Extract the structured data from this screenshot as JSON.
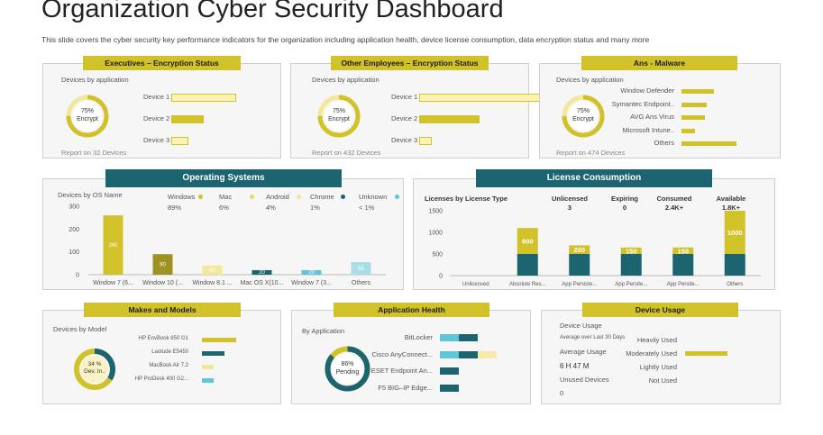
{
  "header": {
    "title": "Organization Cyber Security Dashboard",
    "subtitle": "This slide covers the cyber security key performance indicators for the organization including application health, device license consumption, data encryption status and many more"
  },
  "colors": {
    "yellow": "#d2c22a",
    "teal": "#1c6470",
    "cyan": "#5fc5d8",
    "light_yellow": "#fbf2b3"
  },
  "exec": {
    "title": "Executives – Encryption Status",
    "devices_label": "Devices by application",
    "ring_pct": "75%",
    "ring_label": "Encrypt",
    "ring_value": 0.75,
    "items": [
      {
        "label": "Device 1",
        "value": 0.95,
        "style": "light"
      },
      {
        "label": "Device 2",
        "value": 0.48,
        "style": "solid"
      },
      {
        "label": "Device 3",
        "value": 0.25,
        "style": "light"
      }
    ],
    "footer": "Report on 32 Devices"
  },
  "other": {
    "title": "Other Employees – Encryption Status",
    "devices_label": "Devices by application",
    "ring_pct": "75%",
    "ring_label": "Encrypt",
    "ring_value": 0.75,
    "items": [
      {
        "label": "Device 1",
        "value": 0.96,
        "style": "light"
      },
      {
        "label": "Device 2",
        "value": 0.48,
        "style": "solid"
      },
      {
        "label": "Device 3",
        "value": 0.1,
        "style": "light"
      }
    ],
    "footer": "Report on 432 Devices"
  },
  "malware": {
    "title": "Ans - Malware",
    "devices_label": "Devices by application",
    "ring_pct": "75%",
    "ring_label": "Encrypt",
    "ring_value": 0.75,
    "items": [
      {
        "label": "Window Defender",
        "value": 0.55
      },
      {
        "label": "Symantec Endpoint..",
        "value": 0.42
      },
      {
        "label": "AVG Ans Virus",
        "value": 0.4
      },
      {
        "label": "Microsoft Intune..",
        "value": 0.22
      },
      {
        "label": "Others",
        "value": 0.92
      }
    ],
    "footer": "Report on 474 Devices"
  },
  "os": {
    "title": "Operating Systems",
    "devices_label": "Devices by OS Name",
    "legend": [
      {
        "name": "Windows",
        "pct": "89%",
        "color": "#d2c22a"
      },
      {
        "name": "Mac",
        "pct": "6%",
        "color": "#e6d96a"
      },
      {
        "name": "Android",
        "pct": "4%",
        "color": "#f3e79a"
      },
      {
        "name": "Chrome",
        "pct": "1%",
        "color": "#1c6470"
      },
      {
        "name": "Unknown",
        "pct": "< 1%",
        "color": "#5fc5d8"
      }
    ]
  },
  "license": {
    "title": "License Consumption",
    "col_header": "Licenses by License Type",
    "stats": [
      {
        "label": "Unlicensed",
        "value": "3"
      },
      {
        "label": "Expiring",
        "value": "0"
      },
      {
        "label": "Consumed",
        "value": "2.4K+"
      },
      {
        "label": "Available",
        "value": "1.8K+"
      }
    ]
  },
  "makes": {
    "title": "Makes and Models",
    "devices_label": "Devices by Model",
    "ring_pct": "34 %",
    "ring_label": "Dev. In..",
    "ring_value": 0.34,
    "items": [
      {
        "label": "HP EnvBook 850 G1",
        "value": 0.9,
        "color": "#d2c22a"
      },
      {
        "label": "Laotude E5450",
        "value": 0.6,
        "color": "#1c6470"
      },
      {
        "label": "MacBook Air 7.2",
        "value": 0.3,
        "color": "#f3e79a"
      },
      {
        "label": "HP ProDesk 400 G2...",
        "value": 0.3,
        "color": "#5fc5d8"
      }
    ]
  },
  "apphealth": {
    "title": "Application Health",
    "by_label": "By Application",
    "ring_pct": "86%",
    "ring_label": "Pending",
    "ring_value": 0.86,
    "items": [
      {
        "label": "BitLocker",
        "segments": [
          {
            "v": 0.33,
            "c": "#5fc5d8"
          },
          {
            "v": 0.33,
            "c": "#1c6470"
          }
        ]
      },
      {
        "label": "Cisco AnyConnect...",
        "segments": [
          {
            "v": 0.33,
            "c": "#5fc5d8"
          },
          {
            "v": 0.33,
            "c": "#1c6470"
          },
          {
            "v": 0.33,
            "c": "#fae9a8"
          }
        ]
      },
      {
        "label": "ESET  Endpoint An...",
        "segments": [
          {
            "v": 0.33,
            "c": "#1c6470"
          }
        ]
      },
      {
        "label": "F5 BIG–IP Edge...",
        "segments": [
          {
            "v": 0.33,
            "c": "#1c6470"
          }
        ]
      }
    ]
  },
  "usage": {
    "title": "Device Usage",
    "device_usage_label": "Device Usage",
    "avg_over": "Average  over     Last 30 Days",
    "avg_usage": "Average  Usage",
    "avg_time": "6 H  47  M",
    "unused": "Unused Devices",
    "unused_val": "0",
    "items": [
      {
        "label": "Heavily Used",
        "value": 0
      },
      {
        "label": "Moderately Used",
        "value": 0.9
      },
      {
        "label": "Lightly Used",
        "value": 0
      },
      {
        "label": "Not Used",
        "value": 0
      }
    ]
  },
  "chart_data": [
    {
      "type": "bar",
      "categories": [
        "Window 7 (6...",
        "Window 10 (...",
        "Window 8.1 ...",
        "Mac OS X(10...",
        "Window 7 (3...",
        "Others"
      ],
      "values": [
        260,
        90,
        40,
        20,
        20,
        55
      ],
      "value_labels": [
        "260",
        "90",
        "40",
        "20",
        "20",
        "55"
      ],
      "ylim": [
        0,
        300
      ],
      "yticks": [
        "300",
        "200",
        "100",
        "0"
      ],
      "colors": [
        "#d2c22a",
        "#9e9220",
        "#f3e79a",
        "#1c6470",
        "#5fc5d8",
        "#a9dde8"
      ]
    },
    {
      "type": "bar",
      "stacked": true,
      "categories": [
        "Unlicensed",
        "Absolute Res...",
        "App Persiste...",
        "App Persite...",
        "App Persite...",
        "Others"
      ],
      "series": [
        {
          "values": [
            0,
            500,
            500,
            500,
            500,
            500
          ],
          "color": "#1c6470"
        },
        {
          "values": [
            0,
            600,
            200,
            150,
            150,
            1000
          ],
          "color": "#d2c22a"
        }
      ],
      "value_labels": [
        "",
        "600",
        "200",
        "150",
        "150",
        "1000"
      ],
      "ylim": [
        0,
        1500
      ],
      "yticks": [
        "1500",
        "1000",
        "500",
        "0"
      ]
    }
  ]
}
